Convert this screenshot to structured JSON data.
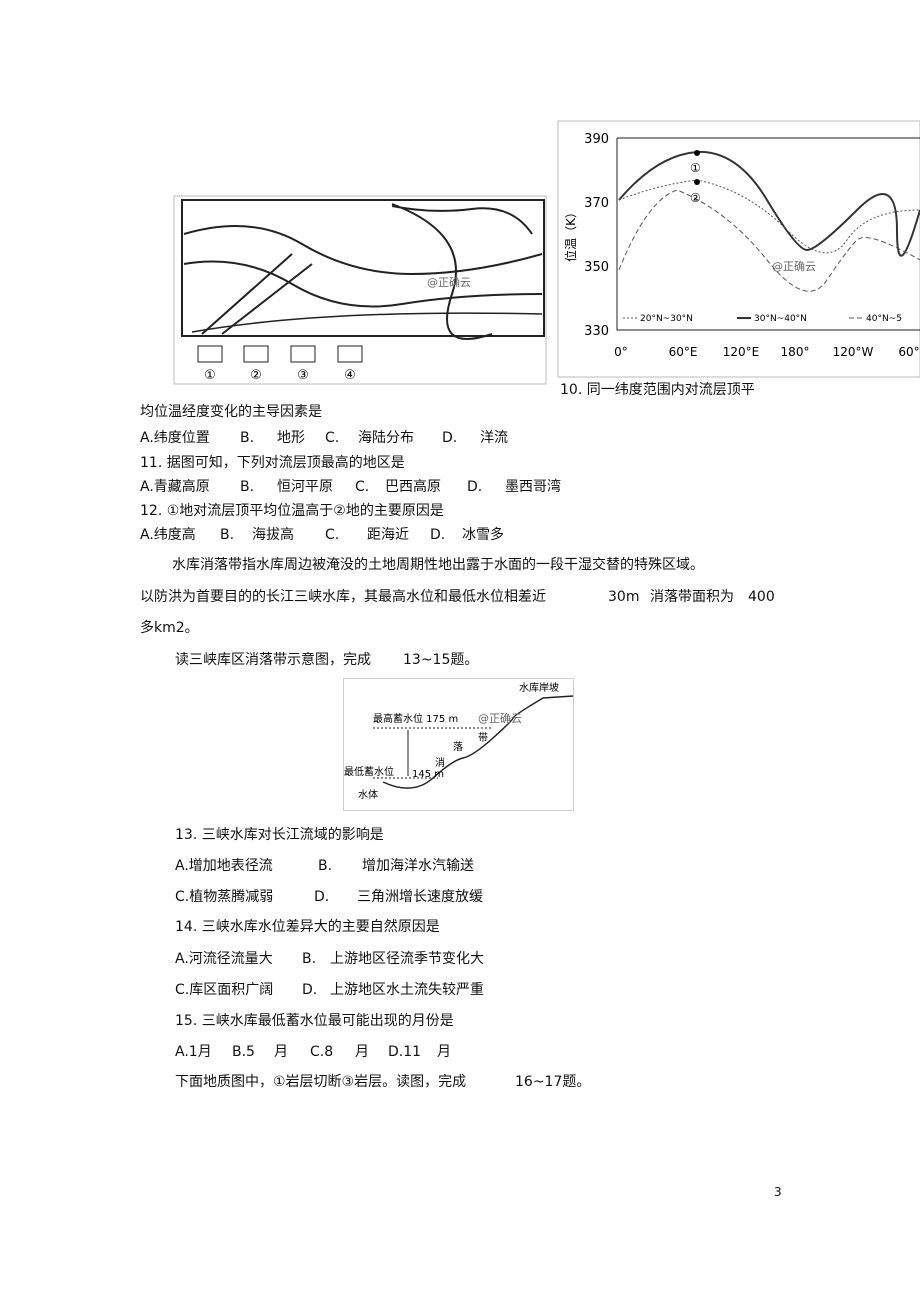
{
  "figure_map": {
    "legend": [
      "①",
      "②",
      "③",
      "④"
    ],
    "watermark": "@正确云"
  },
  "figure_chart": {
    "ylabel": "位温（K）",
    "yticks": [
      "390",
      "370",
      "350",
      "330"
    ],
    "xticks": [
      "0°",
      "60°E",
      "120°E",
      "180°",
      "120°W",
      "60°"
    ],
    "legend": [
      "20°N~30°N",
      "30°N~40°N",
      "40°N~5"
    ],
    "markers": [
      "①",
      "②"
    ],
    "watermark": "@正确云"
  },
  "lines": [
    {
      "text": "10. 同一纬度范围内对流层顶平"
    },
    {
      "text": "均位温经度变化的主导因素是"
    },
    {
      "options": [
        "A.纬度位置",
        "B.",
        "地形",
        "C.",
        "海陆分布",
        "D.",
        "洋流"
      ]
    },
    {
      "text": "11. 据图可知，下列对流层顶最高的地区是"
    },
    {
      "options": [
        "A.青藏高原",
        "B.",
        "恒河平原",
        "C.",
        "巴西高原",
        "D.",
        "墨西哥湾"
      ]
    },
    {
      "text": "12. ①地对流层顶平均位温高于②地的主要原因是"
    },
    {
      "options": [
        "A.纬度高",
        "B.",
        "海拔高",
        "C.",
        "距海近",
        "D.",
        "冰雪多"
      ]
    },
    {
      "text": "水库消落带指水库周边被淹没的土地周期性地出露于水面的一段干湿交替的特殊区域。"
    },
    {
      "parts": [
        "以防洪为首要目的的长江三峡水库，其最高水位和最低水位相差近",
        "30m",
        "消落带面积为",
        "400"
      ]
    },
    {
      "text": "多km2。"
    },
    {
      "parts": [
        "读三峡库区消落带示意图，完成",
        "13~15题。"
      ]
    }
  ],
  "figure_reservoir": {
    "slope": "水库岸坡",
    "high": "最高蓄水位 175 m",
    "watermark": "@正确云",
    "zone": [
      "消",
      "落",
      "带"
    ],
    "low": "最低蓄水位",
    "low_value": "145 m",
    "water": "水体"
  },
  "questions": [
    {
      "stem": "13. 三峡水库对长江流域的影响是",
      "rows": [
        [
          "A.增加地表径流",
          "B.",
          "增加海洋水汽输送"
        ],
        [
          "C.植物蒸腾减弱",
          "D.",
          "三角洲增长速度放缓"
        ]
      ]
    },
    {
      "stem": "14. 三峡水库水位差异大的主要自然原因是",
      "rows": [
        [
          "A.河流径流量大",
          "B.",
          "上游地区径流季节变化大"
        ],
        [
          "C.库区面积广阔",
          "D.",
          "上游地区水土流失较严重"
        ]
      ]
    },
    {
      "stem": "15. 三峡水库最低蓄水位最可能出现的月份是",
      "rows": [
        [
          "A.1月",
          "B.5",
          "月",
          "C.8",
          "月",
          "D.11",
          "月"
        ]
      ]
    }
  ],
  "last": [
    "下面地质图中，①岩层切断③岩层。读图，完成",
    "16~17题。"
  ],
  "page_number": "3"
}
